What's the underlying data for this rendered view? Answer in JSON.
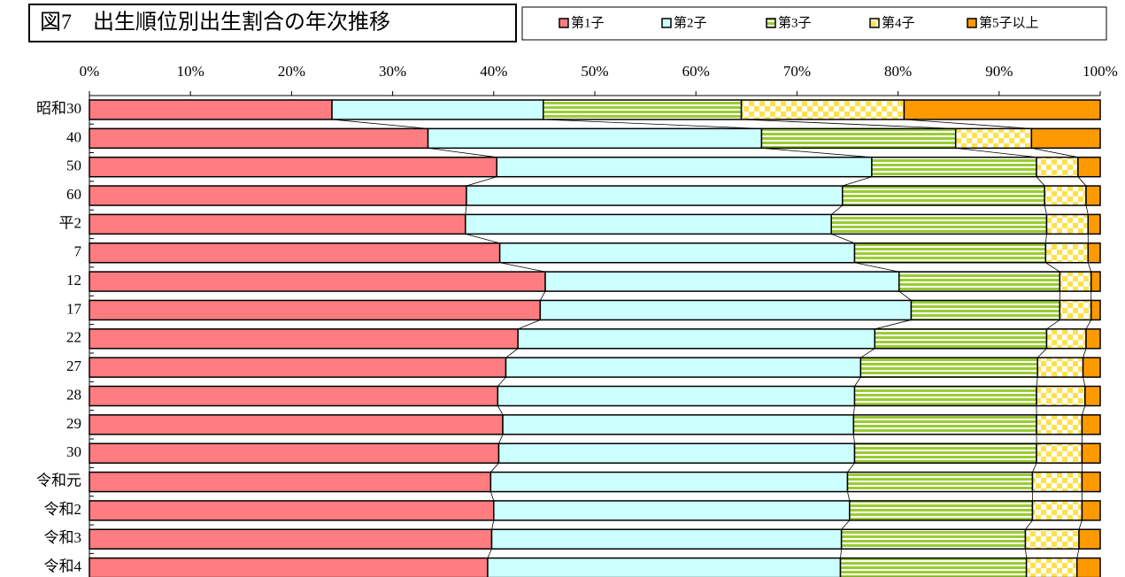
{
  "chart_data": {
    "type": "stacked-barh",
    "title": "図7　出生順位別出生割合の年次推移",
    "categories": [
      "昭和30",
      "40",
      "50",
      "60",
      "平2",
      "7",
      "12",
      "17",
      "22",
      "27",
      "28",
      "29",
      "30",
      "令和元",
      "令和2",
      "令和3",
      "令和4"
    ],
    "series": [
      {
        "name": "第1子",
        "color": "#ff7c80",
        "values": [
          24.0,
          33.5,
          40.3,
          37.3,
          37.2,
          40.6,
          45.1,
          44.6,
          42.4,
          41.2,
          40.4,
          40.9,
          40.5,
          39.7,
          40.0,
          39.8,
          39.4
        ]
      },
      {
        "name": "第2子",
        "color": "#ccffff",
        "values": [
          20.9,
          33.0,
          37.1,
          37.2,
          36.2,
          35.1,
          35.0,
          36.7,
          35.3,
          35.1,
          35.3,
          34.7,
          35.2,
          35.3,
          35.2,
          34.6,
          34.9
        ]
      },
      {
        "name": "第3子",
        "color": "#99cc33",
        "values": [
          19.6,
          19.2,
          16.3,
          20.0,
          21.3,
          18.9,
          15.9,
          14.7,
          17.0,
          17.5,
          18.0,
          18.1,
          18.0,
          18.3,
          18.1,
          18.2,
          18.4
        ]
      },
      {
        "name": "第4子",
        "color": "#ffe14d",
        "values": [
          16.1,
          7.5,
          4.1,
          4.1,
          4.1,
          4.2,
          3.1,
          3.1,
          3.9,
          4.5,
          4.8,
          4.5,
          4.5,
          4.9,
          4.9,
          5.3,
          5.0
        ]
      },
      {
        "name": "第5子以上",
        "color": "#ff9900",
        "values": [
          19.4,
          6.8,
          2.2,
          1.4,
          1.2,
          1.2,
          0.9,
          0.9,
          1.4,
          1.7,
          1.5,
          1.8,
          1.8,
          1.8,
          1.8,
          2.1,
          2.3
        ]
      }
    ],
    "xlim": [
      0,
      100
    ],
    "xticks": [
      {
        "value": 0,
        "label": "0%"
      },
      {
        "value": 10,
        "label": "10%"
      },
      {
        "value": 20,
        "label": "20%"
      },
      {
        "value": 30,
        "label": "30%"
      },
      {
        "value": 40,
        "label": "40%"
      },
      {
        "value": 50,
        "label": "50%"
      },
      {
        "value": 60,
        "label": "60%"
      },
      {
        "value": 70,
        "label": "70%"
      },
      {
        "value": 80,
        "label": "80%"
      },
      {
        "value": 90,
        "label": "90%"
      },
      {
        "value": 100,
        "label": "100%"
      }
    ]
  }
}
